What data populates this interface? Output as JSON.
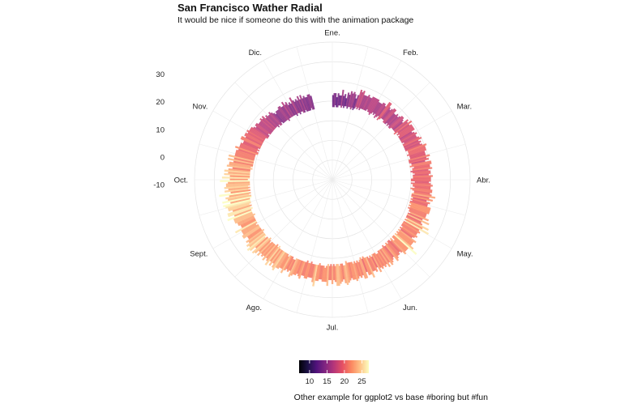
{
  "chart_data": {
    "type": "bar",
    "coord": "polar",
    "title": "San Francisco Wather Radial",
    "subtitle": "It would be nice if someone do this with the animation package",
    "caption": "Other example for ggplot2 vs base #boring but #fun",
    "months": [
      "Ene.",
      "Feb.",
      "Mar.",
      "Abr.",
      "May.",
      "Jun.",
      "Jul.",
      "Ago.",
      "Sept.",
      "Oct.",
      "Nov.",
      "Dic."
    ],
    "radial_ticks": [
      30,
      20,
      10,
      0,
      -10
    ],
    "ylim": [
      -30,
      40
    ],
    "grid": true,
    "legend": {
      "position": "bottom",
      "ticks": [
        10,
        15,
        20,
        25
      ],
      "range": [
        7,
        27
      ],
      "palette": [
        "#000004",
        "#1d1147",
        "#51127c",
        "#822681",
        "#b63679",
        "#e65164",
        "#fb8861",
        "#fec287",
        "#fcfdbf"
      ]
    },
    "daily_min": [
      7,
      7,
      8,
      7,
      7,
      8,
      8,
      7,
      8,
      7,
      8,
      8,
      7,
      8,
      8,
      7,
      8,
      7,
      8,
      9,
      8,
      9,
      8,
      9,
      9,
      9,
      9,
      9,
      10,
      9,
      9,
      8,
      9,
      10,
      9,
      10,
      8,
      9,
      10,
      8,
      9,
      10,
      10,
      10,
      9,
      9,
      9,
      10,
      9,
      10,
      9,
      9,
      10,
      10,
      10,
      10,
      10,
      9,
      11,
      10,
      11,
      10,
      10,
      10,
      10,
      10,
      10,
      11,
      10,
      10,
      10,
      10,
      10,
      10,
      11,
      11,
      11,
      10,
      11,
      11,
      11,
      10,
      10,
      10,
      11,
      11,
      10,
      12,
      11,
      11,
      10,
      11,
      12,
      11,
      11,
      11,
      10,
      10,
      12,
      10,
      11,
      11,
      12,
      10,
      11,
      12,
      12,
      11,
      11,
      11,
      12,
      11,
      12,
      11,
      11,
      12,
      11,
      12,
      11,
      12,
      12,
      13,
      12,
      12,
      12,
      12,
      13,
      12,
      13,
      12,
      12,
      12,
      12,
      13,
      12,
      13,
      12,
      13,
      12,
      13,
      12,
      13,
      12,
      12,
      14,
      12,
      13,
      12,
      12,
      13,
      12,
      13,
      13,
      12,
      13,
      13,
      13,
      13,
      13,
      14,
      14,
      13,
      13,
      13,
      14,
      13,
      14,
      13,
      13,
      13,
      12,
      13,
      12,
      13,
      14,
      13,
      14,
      13,
      14,
      13,
      13,
      13,
      13,
      12,
      14,
      14,
      13,
      13,
      14,
      13,
      13,
      14,
      13,
      14,
      13,
      14,
      13,
      14,
      15,
      14,
      14,
      14,
      13,
      14,
      14,
      14,
      14,
      14,
      13,
      14,
      14,
      13,
      14,
      14,
      14,
      14,
      14,
      14,
      14,
      14,
      15,
      15,
      14,
      14,
      14,
      15,
      14,
      14,
      14,
      14,
      14,
      14,
      14,
      14,
      13,
      14,
      13,
      14,
      14,
      14,
      14,
      15,
      14,
      13,
      14,
      14,
      15,
      14,
      14,
      14,
      14,
      13,
      14,
      14,
      14,
      14,
      14,
      15,
      14,
      14,
      14,
      14,
      14,
      14,
      13,
      14,
      14,
      14,
      14,
      13,
      14,
      13,
      14,
      13,
      13,
      13,
      13,
      12,
      12,
      13,
      12,
      13,
      12,
      13,
      12,
      13,
      12,
      12,
      12,
      12,
      13,
      12,
      12,
      12,
      12,
      12,
      12,
      12,
      11,
      12,
      11,
      11,
      11,
      11,
      11,
      11,
      11,
      11,
      11,
      11,
      10,
      10,
      11,
      10,
      11,
      10,
      10,
      10,
      10,
      10,
      10,
      10,
      10,
      10,
      10,
      9,
      9,
      9,
      10,
      9,
      9,
      9,
      9,
      9,
      9,
      9,
      9,
      9,
      8,
      9,
      8,
      8,
      9,
      8,
      8,
      8,
      8,
      8,
      7,
      8,
      8,
      8,
      8,
      8,
      8,
      8,
      7,
      8,
      8,
      7,
      8,
      8,
      7,
      7,
      8,
      7,
      7,
      7,
      7,
      8,
      7,
      7
    ],
    "daily_max": [
      13,
      14,
      14,
      12,
      14,
      13,
      13,
      16,
      13,
      14,
      12,
      15,
      14,
      16,
      15,
      16,
      15,
      13,
      15,
      18,
      17,
      18,
      16,
      16,
      16,
      17,
      16,
      16,
      17,
      17,
      17,
      17,
      17,
      16,
      16,
      16,
      17,
      17,
      16,
      19,
      19,
      17,
      16,
      17,
      18,
      18,
      16,
      16,
      17,
      16,
      17,
      18,
      18,
      17,
      16,
      19,
      18,
      20,
      18,
      19,
      19,
      19,
      19,
      17,
      18,
      19,
      18,
      18,
      19,
      20,
      18,
      19,
      18,
      19,
      21,
      20,
      20,
      20,
      19,
      19,
      19,
      21,
      19,
      20,
      18,
      21,
      21,
      20,
      20,
      21,
      19,
      20,
      20,
      19,
      21,
      20,
      20,
      20,
      19,
      20,
      21,
      20,
      20,
      21,
      21,
      20,
      21,
      23,
      20,
      22,
      19,
      21,
      20,
      20,
      22,
      22,
      22,
      22,
      21,
      21,
      21,
      23,
      20,
      24,
      20,
      21,
      25,
      22,
      26,
      21,
      22,
      21,
      21,
      22,
      21,
      20,
      23,
      22,
      22,
      22,
      24,
      27,
      22,
      22,
      22,
      23,
      21,
      20,
      21,
      21,
      22,
      23,
      20,
      21,
      22,
      23,
      21,
      23,
      21,
      22,
      21,
      22,
      21,
      23,
      20,
      22,
      21,
      21,
      24,
      22,
      22,
      20,
      23,
      23,
      21,
      22,
      21,
      22,
      23,
      22,
      22,
      21,
      22,
      23,
      24,
      23,
      21,
      22,
      23,
      24,
      24,
      22,
      21,
      23,
      21,
      21,
      24,
      22,
      22,
      22,
      21,
      21,
      22,
      22,
      25,
      23,
      21,
      21,
      21,
      22,
      22,
      21,
      21,
      23,
      22,
      21,
      22,
      22,
      23,
      24,
      21,
      22,
      21,
      22,
      24,
      22,
      22,
      23,
      23,
      25,
      24,
      22,
      24,
      22,
      25,
      23,
      22,
      24,
      22,
      23,
      22,
      24,
      22,
      24,
      25,
      22,
      25,
      26,
      24,
      25,
      23,
      24,
      22,
      22,
      24,
      24,
      23,
      23,
      23,
      26,
      22,
      22,
      23,
      23,
      24,
      24,
      24,
      27,
      23,
      26,
      26,
      23,
      25,
      25,
      26,
      27,
      23,
      27,
      24,
      25,
      23,
      28,
      22,
      25,
      23,
      25,
      24,
      24,
      23,
      27,
      22,
      26,
      22,
      25,
      23,
      25,
      23,
      21,
      24,
      23,
      23,
      21,
      24,
      21,
      24,
      21,
      21,
      21,
      21,
      20,
      22,
      20,
      20,
      20,
      19,
      19,
      21,
      21,
      19,
      20,
      20,
      19,
      20,
      19,
      19,
      19,
      18,
      17,
      18,
      18,
      17,
      17,
      17,
      18,
      17,
      18,
      16,
      17,
      16,
      16,
      17,
      16,
      15,
      14,
      15,
      15,
      15,
      16,
      16,
      15,
      15,
      17,
      15,
      16,
      14,
      15,
      14,
      17,
      15,
      14,
      15,
      14,
      16,
      14,
      16,
      14,
      15,
      14,
      14,
      15,
      15,
      14,
      13,
      13,
      14,
      15,
      12,
      15,
      14,
      15,
      12,
      14,
      13,
      13,
      13,
      14,
      15
    ]
  }
}
